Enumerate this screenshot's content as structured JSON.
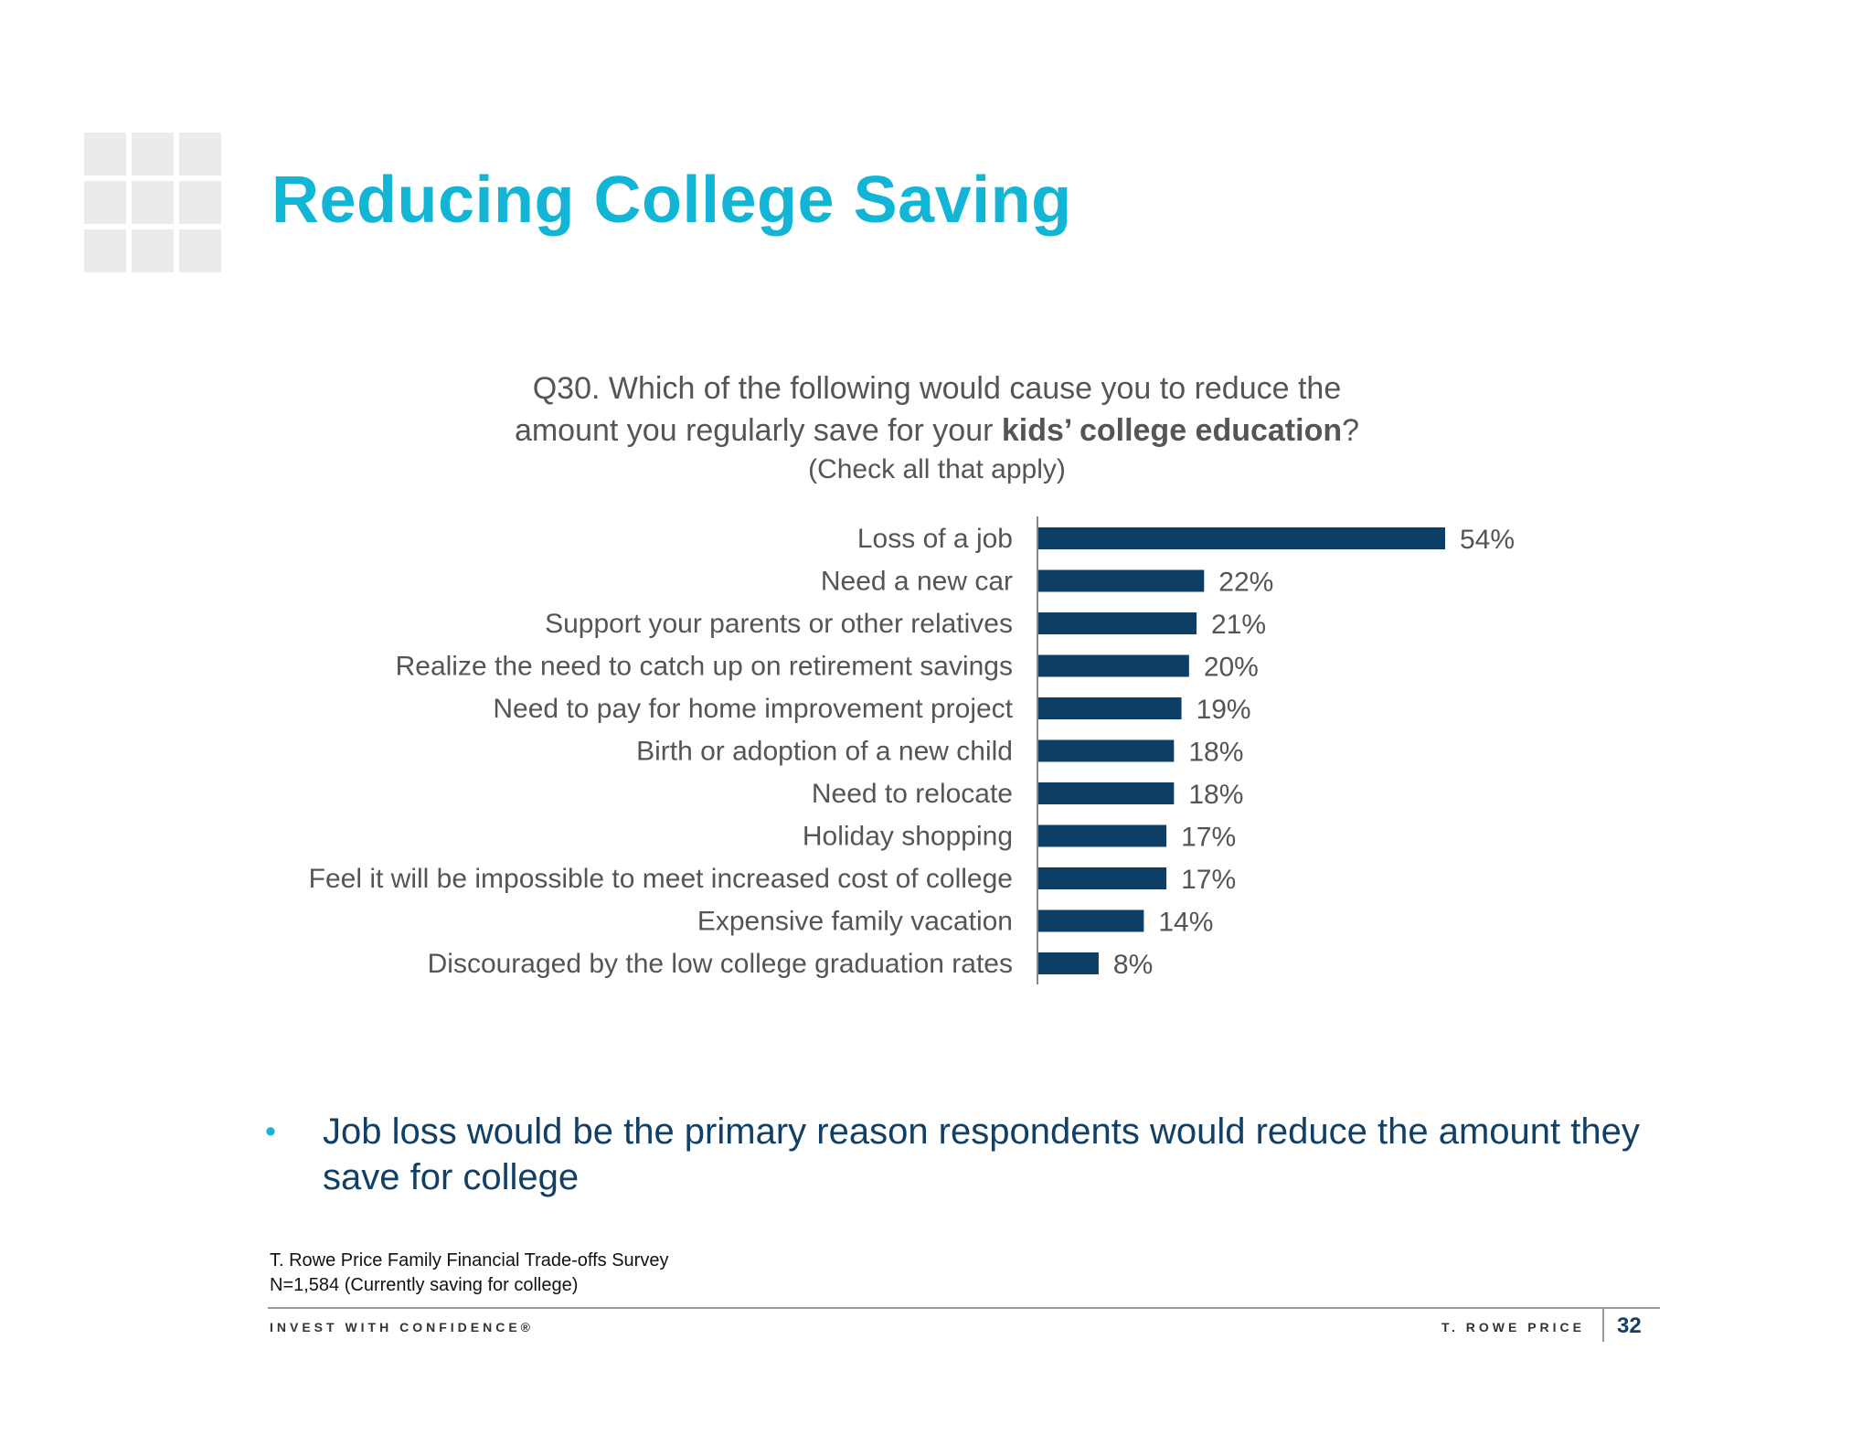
{
  "slide": {
    "title": "Reducing College Saving",
    "question": {
      "line1": "Q30. Which of the following would cause you to reduce the",
      "line2_pre": "amount you regularly save for your ",
      "line2_bold": "kids’ college education",
      "line2_post": "?",
      "line3": "(Check all that apply)"
    },
    "bullet": "•",
    "insight": "Job loss would be the primary reason respondents would reduce the amount they save for college",
    "source_line1": "T. Rowe Price Family Financial Trade-offs Survey",
    "source_line2": "N=1,584 (Currently saving for college)",
    "footer_left": "INVEST WITH CONFIDENCE®",
    "footer_right": "T. ROWE PRICE",
    "page_number": "32"
  },
  "colors": {
    "title": "#12b5d6",
    "bar": "#0d3f66",
    "insight_text": "#123f66",
    "bullet": "#12b5d6"
  },
  "chart_data": {
    "type": "bar",
    "orientation": "horizontal",
    "categories": [
      "Loss of a job",
      "Need a new car",
      "Support your parents or other relatives",
      "Realize the need to catch up on retirement savings",
      "Need to pay for home improvement project",
      "Birth or adoption of a new child",
      "Need to relocate",
      "Holiday shopping",
      "Feel it will be impossible to meet increased cost of college",
      "Expensive family vacation",
      "Discouraged by the low college graduation rates"
    ],
    "values": [
      54,
      22,
      21,
      20,
      19,
      18,
      18,
      17,
      17,
      14,
      8
    ],
    "value_labels": [
      "54%",
      "22%",
      "21%",
      "20%",
      "19%",
      "18%",
      "18%",
      "17%",
      "17%",
      "14%",
      "8%"
    ],
    "unit": "%",
    "xlim": [
      0,
      60
    ],
    "grid": false,
    "legend": "none"
  }
}
